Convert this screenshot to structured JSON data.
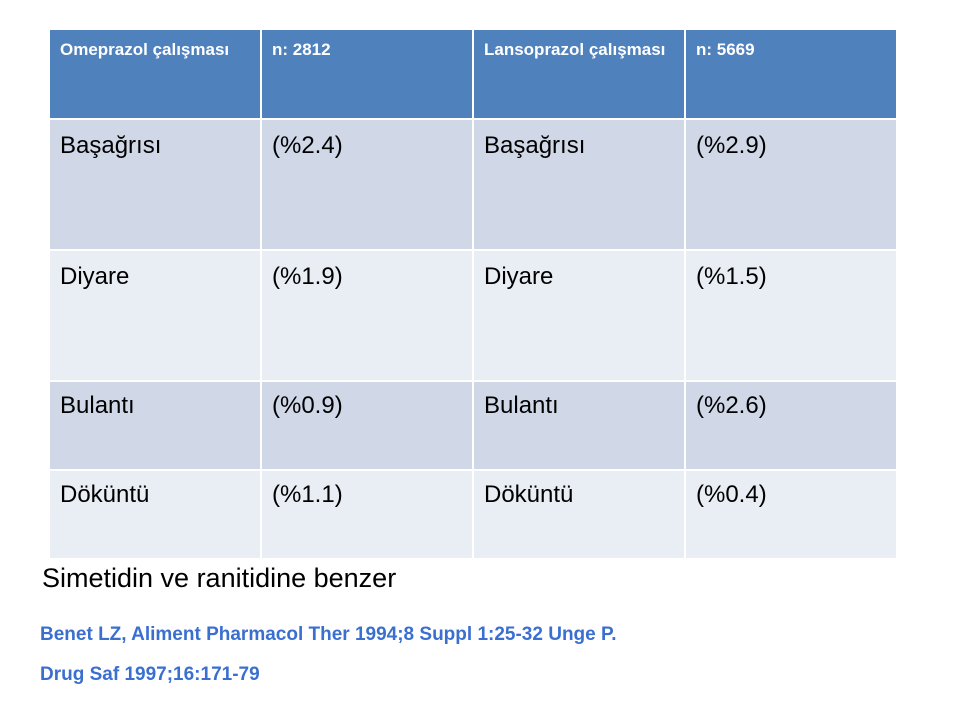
{
  "table": {
    "header": [
      "Omeprazol çalışması",
      "n: 2812",
      "Lansoprazol çalışması",
      "n: 5669"
    ],
    "rows": [
      [
        "Başağrısı",
        "(%2.4)",
        "Başağrısı",
        "(%2.9)"
      ],
      [
        "Diyare",
        "(%1.9)",
        "Diyare",
        "(%1.5)"
      ],
      [
        "Bulantı",
        "(%0.9)",
        "Bulantı",
        "(%2.6)"
      ],
      [
        "Döküntü",
        "(%1.1)",
        "Döküntü",
        "(%0.4)"
      ]
    ]
  },
  "note": "Simetidin ve ranitidine benzer",
  "references": [
    "Benet LZ, Aliment Pharmacol Ther 1994;8 Suppl 1:25-32 Unge P.",
    "Drug Saf 1997;16:171-79"
  ]
}
